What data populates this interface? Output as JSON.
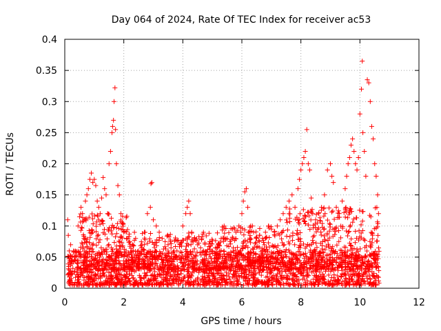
{
  "chart_data": {
    "type": "scatter",
    "title": "Day 064 of 2024, Rate Of TEC Index for receiver ac53",
    "xlabel": "GPS time / hours",
    "ylabel": "ROTI / TECUs",
    "xlim": [
      0,
      12
    ],
    "ylim": [
      0,
      0.4
    ],
    "xticks": [
      0,
      2,
      4,
      6,
      8,
      10,
      12
    ],
    "xtick_labels": [
      "0",
      "2",
      "4",
      "6",
      "8",
      "10",
      "12"
    ],
    "yticks": [
      0,
      0.05,
      0.1,
      0.15,
      0.2,
      0.25,
      0.3,
      0.35,
      0.4
    ],
    "ytick_labels": [
      "0",
      "0.05",
      "0.1",
      "0.15",
      "0.2",
      "0.25",
      "0.3",
      "0.35",
      "0.4"
    ],
    "grid": true,
    "marker": "+",
    "color": "#ff0000",
    "series": [
      {
        "name": "ROTI",
        "points": [
          [
            0.1,
            0.11
          ],
          [
            0.12,
            0.085
          ],
          [
            0.15,
            0.06
          ],
          [
            0.2,
            0.07
          ],
          [
            0.25,
            0.05
          ],
          [
            0.3,
            0.06
          ],
          [
            0.35,
            0.045
          ],
          [
            0.45,
            0.1
          ],
          [
            0.5,
            0.115
          ],
          [
            0.55,
            0.13
          ],
          [
            0.6,
            0.12
          ],
          [
            0.65,
            0.08
          ],
          [
            0.7,
            0.14
          ],
          [
            0.75,
            0.15
          ],
          [
            0.8,
            0.16
          ],
          [
            0.85,
            0.175
          ],
          [
            0.9,
            0.185
          ],
          [
            0.95,
            0.17
          ],
          [
            1.0,
            0.175
          ],
          [
            1.05,
            0.165
          ],
          [
            1.1,
            0.14
          ],
          [
            1.15,
            0.13
          ],
          [
            1.2,
            0.12
          ],
          [
            1.25,
            0.145
          ],
          [
            1.3,
            0.178
          ],
          [
            1.35,
            0.16
          ],
          [
            1.4,
            0.15
          ],
          [
            1.45,
            0.12
          ],
          [
            1.5,
            0.2
          ],
          [
            1.55,
            0.22
          ],
          [
            1.6,
            0.25
          ],
          [
            1.62,
            0.26
          ],
          [
            1.65,
            0.27
          ],
          [
            1.67,
            0.3
          ],
          [
            1.7,
            0.322
          ],
          [
            1.72,
            0.255
          ],
          [
            1.75,
            0.2
          ],
          [
            1.8,
            0.165
          ],
          [
            1.85,
            0.15
          ],
          [
            1.9,
            0.12
          ],
          [
            1.95,
            0.105
          ],
          [
            2.0,
            0.09
          ],
          [
            2.1,
            0.08
          ],
          [
            2.2,
            0.075
          ],
          [
            2.3,
            0.07
          ],
          [
            2.4,
            0.08
          ],
          [
            2.5,
            0.06
          ],
          [
            2.6,
            0.065
          ],
          [
            2.7,
            0.09
          ],
          [
            2.8,
            0.12
          ],
          [
            2.9,
            0.13
          ],
          [
            2.92,
            0.168
          ],
          [
            2.95,
            0.17
          ],
          [
            3.0,
            0.11
          ],
          [
            3.1,
            0.1
          ],
          [
            3.2,
            0.09
          ],
          [
            3.3,
            0.08
          ],
          [
            3.4,
            0.075
          ],
          [
            3.5,
            0.07
          ],
          [
            3.6,
            0.065
          ],
          [
            3.7,
            0.06
          ],
          [
            3.8,
            0.06
          ],
          [
            3.9,
            0.07
          ],
          [
            4.0,
            0.1
          ],
          [
            4.1,
            0.12
          ],
          [
            4.15,
            0.13
          ],
          [
            4.2,
            0.14
          ],
          [
            4.25,
            0.12
          ],
          [
            4.3,
            0.09
          ],
          [
            4.4,
            0.08
          ],
          [
            4.5,
            0.07
          ],
          [
            4.6,
            0.065
          ],
          [
            4.7,
            0.06
          ],
          [
            4.8,
            0.058
          ],
          [
            4.9,
            0.055
          ],
          [
            5.0,
            0.06
          ],
          [
            5.1,
            0.065
          ],
          [
            5.2,
            0.07
          ],
          [
            5.3,
            0.08
          ],
          [
            5.4,
            0.1
          ],
          [
            5.5,
            0.08
          ],
          [
            5.6,
            0.075
          ],
          [
            5.7,
            0.08
          ],
          [
            5.8,
            0.09
          ],
          [
            5.9,
            0.1
          ],
          [
            6.0,
            0.12
          ],
          [
            6.05,
            0.14
          ],
          [
            6.1,
            0.155
          ],
          [
            6.15,
            0.16
          ],
          [
            6.2,
            0.13
          ],
          [
            6.3,
            0.1
          ],
          [
            6.4,
            0.09
          ],
          [
            6.5,
            0.08
          ],
          [
            6.6,
            0.085
          ],
          [
            6.7,
            0.08
          ],
          [
            6.8,
            0.09
          ],
          [
            6.9,
            0.1
          ],
          [
            7.0,
            0.095
          ],
          [
            7.1,
            0.09
          ],
          [
            7.2,
            0.1
          ],
          [
            7.3,
            0.11
          ],
          [
            7.4,
            0.12
          ],
          [
            7.5,
            0.13
          ],
          [
            7.6,
            0.14
          ],
          [
            7.7,
            0.15
          ],
          [
            7.8,
            0.13
          ],
          [
            7.9,
            0.16
          ],
          [
            7.95,
            0.175
          ],
          [
            8.0,
            0.19
          ],
          [
            8.05,
            0.2
          ],
          [
            8.1,
            0.21
          ],
          [
            8.15,
            0.22
          ],
          [
            8.2,
            0.255
          ],
          [
            8.25,
            0.2
          ],
          [
            8.3,
            0.19
          ],
          [
            8.35,
            0.145
          ],
          [
            8.4,
            0.12
          ],
          [
            8.5,
            0.11
          ],
          [
            8.6,
            0.12
          ],
          [
            8.7,
            0.13
          ],
          [
            8.8,
            0.15
          ],
          [
            8.9,
            0.19
          ],
          [
            9.0,
            0.2
          ],
          [
            9.05,
            0.18
          ],
          [
            9.1,
            0.17
          ],
          [
            9.2,
            0.13
          ],
          [
            9.3,
            0.12
          ],
          [
            9.4,
            0.14
          ],
          [
            9.5,
            0.16
          ],
          [
            9.55,
            0.18
          ],
          [
            9.6,
            0.2
          ],
          [
            9.65,
            0.21
          ],
          [
            9.7,
            0.23
          ],
          [
            9.75,
            0.24
          ],
          [
            9.8,
            0.22
          ],
          [
            9.85,
            0.2
          ],
          [
            9.9,
            0.19
          ],
          [
            9.95,
            0.21
          ],
          [
            10.0,
            0.28
          ],
          [
            10.05,
            0.32
          ],
          [
            10.08,
            0.365
          ],
          [
            10.1,
            0.25
          ],
          [
            10.15,
            0.22
          ],
          [
            10.2,
            0.18
          ],
          [
            10.25,
            0.335
          ],
          [
            10.3,
            0.33
          ],
          [
            10.35,
            0.3
          ],
          [
            10.4,
            0.26
          ],
          [
            10.45,
            0.24
          ],
          [
            10.5,
            0.2
          ],
          [
            10.55,
            0.18
          ],
          [
            10.6,
            0.15
          ],
          [
            10.63,
            0.12
          ]
        ]
      }
    ],
    "background_density": [
      {
        "x_start": 0.1,
        "x_end": 10.65,
        "y_min": 0.005,
        "y_max": 0.06,
        "count": 1800
      },
      {
        "x_start": 0.5,
        "x_end": 2.2,
        "y_min": 0.03,
        "y_max": 0.12,
        "count": 260
      },
      {
        "x_start": 2.2,
        "x_end": 5.3,
        "y_min": 0.03,
        "y_max": 0.09,
        "count": 320
      },
      {
        "x_start": 5.3,
        "x_end": 7.5,
        "y_min": 0.03,
        "y_max": 0.1,
        "count": 280
      },
      {
        "x_start": 7.5,
        "x_end": 10.65,
        "y_min": 0.03,
        "y_max": 0.13,
        "count": 420
      }
    ]
  }
}
